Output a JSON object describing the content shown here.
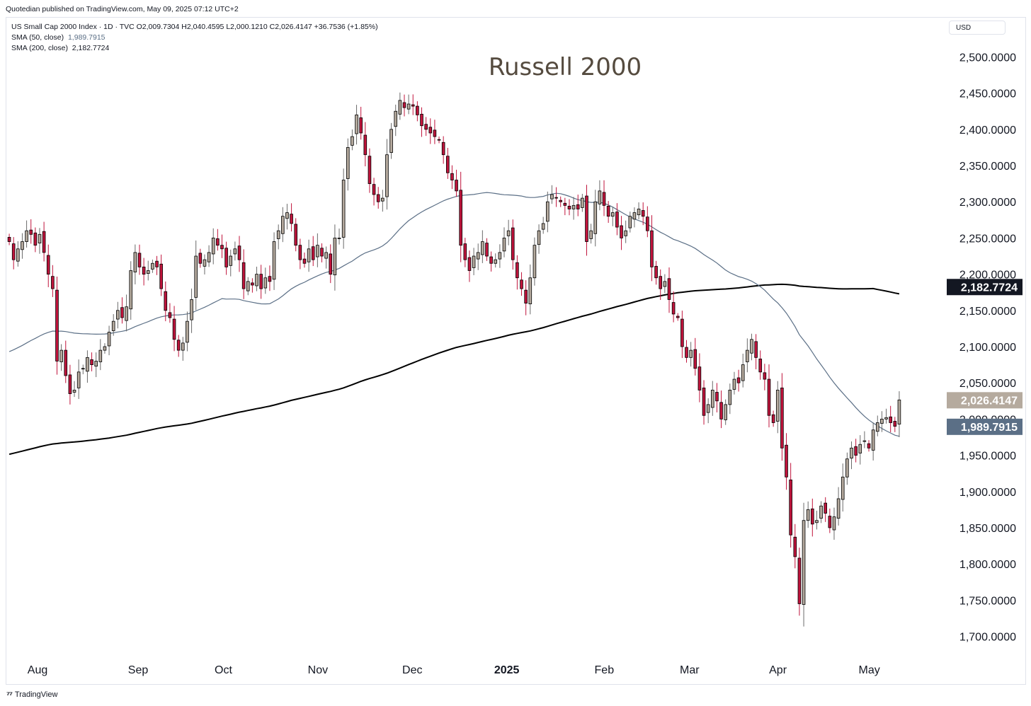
{
  "published_line": "Quotedian published on TradingView.com, May 09, 2025 07:12 UTC+2",
  "legend": {
    "symbol_line": "US Small Cap 2000 Index · 1D · TVC  O2,009.7304  H2,040.4595  L2,000.1210  C2,026.4147  +36.7536 (+1.85%)",
    "sma50_label": "SMA (50, close)",
    "sma50_value": "1,989.7915",
    "sma200_label": "SMA (200, close)",
    "sma200_value": "2,182.7724"
  },
  "currency": "USD",
  "footer": {
    "brand": "TradingView",
    "logo_icon": "tradingview-logo-icon"
  },
  "colors": {
    "up_candle_fill": "#b5aa9e",
    "down_candle_fill": "#c0143c",
    "sma50_line": "#5b6f86",
    "sma200_line": "#000000",
    "title_text": "#554b3f",
    "last_price_badge": "#b5aa9e",
    "sma50_badge": "#5b6f86",
    "sma200_badge": "#131722"
  },
  "chart_data": {
    "type": "candlestick",
    "title": "Russell 2000",
    "ylim": [
      1680,
      2520
    ],
    "y_ticks": [
      2500,
      2450,
      2400,
      2350,
      2300,
      2250,
      2200,
      2150,
      2100,
      2050,
      2000,
      1950,
      1900,
      1850,
      1800,
      1750,
      1700
    ],
    "y_tick_labels": [
      "2,500.0000",
      "2,450.0000",
      "2,400.0000",
      "2,350.0000",
      "2,300.0000",
      "2,250.0000",
      "2,200.0000",
      "2,150.0000",
      "2,100.0000",
      "2,050.0000",
      "2,000.0000",
      "1,950.0000",
      "1,900.0000",
      "1,850.0000",
      "1,800.0000",
      "1,750.0000",
      "1,700.0000"
    ],
    "x_range": [
      "2024-07-22",
      "2025-05-12"
    ],
    "x_ticks": [
      {
        "date": "2024-08-01",
        "label": "Aug"
      },
      {
        "date": "2024-09-03",
        "label": "Sep"
      },
      {
        "date": "2024-10-01",
        "label": "Oct"
      },
      {
        "date": "2024-11-01",
        "label": "Nov"
      },
      {
        "date": "2024-12-02",
        "label": "Dec"
      },
      {
        "date": "2025-01-02",
        "label": "2025"
      },
      {
        "date": "2025-02-03",
        "label": "Feb"
      },
      {
        "date": "2025-03-03",
        "label": "Mar"
      },
      {
        "date": "2025-04-01",
        "label": "Apr"
      },
      {
        "date": "2025-05-01",
        "label": "May"
      }
    ],
    "price_badges": [
      {
        "label": "2,182.7724",
        "value": 2182.7724,
        "series": "SMA (200, close)"
      },
      {
        "label": "2,026.4147",
        "value": 2026.4147,
        "series": "Last close"
      },
      {
        "label": "1,989.7915",
        "value": 1989.7915,
        "series": "SMA (50, close)"
      }
    ],
    "candles_close": [
      2245,
      2220,
      2235,
      2245,
      2260,
      2255,
      2240,
      2255,
      2230,
      2200,
      2180,
      2080,
      2095,
      2060,
      2035,
      2040,
      2065,
      2070,
      2085,
      2075,
      2080,
      2095,
      2100,
      2120,
      2135,
      2150,
      2140,
      2155,
      2205,
      2230,
      2210,
      2200,
      2205,
      2215,
      2210,
      2180,
      2150,
      2140,
      2110,
      2095,
      2105,
      2135,
      2165,
      2225,
      2215,
      2220,
      2230,
      2250,
      2240,
      2235,
      2210,
      2225,
      2235,
      2220,
      2180,
      2190,
      2185,
      2200,
      2180,
      2195,
      2190,
      2245,
      2260,
      2280,
      2285,
      2270,
      2240,
      2220,
      2215,
      2235,
      2220,
      2240,
      2225,
      2230,
      2200,
      2250,
      2250,
      2330,
      2375,
      2390,
      2420,
      2395,
      2365,
      2325,
      2310,
      2300,
      2305,
      2365,
      2400,
      2425,
      2440,
      2430,
      2435,
      2432,
      2420,
      2405,
      2400,
      2395,
      2390,
      2385,
      2365,
      2340,
      2330,
      2315,
      2240,
      2220,
      2205,
      2225,
      2230,
      2245,
      2225,
      2215,
      2220,
      2230,
      2250,
      2260,
      2220,
      2195,
      2180,
      2160,
      2195,
      2240,
      2260,
      2270,
      2300,
      2310,
      2305,
      2300,
      2295,
      2290,
      2295,
      2290,
      2305,
      2245,
      2260,
      2300,
      2315,
      2295,
      2280,
      2285,
      2265,
      2250,
      2260,
      2280,
      2285,
      2290,
      2280,
      2260,
      2210,
      2195,
      2180,
      2190,
      2165,
      2145,
      2140,
      2100,
      2085,
      2095,
      2070,
      2040,
      2005,
      2020,
      2040,
      2025,
      2000,
      2020,
      2040,
      2055,
      2050,
      2075,
      2095,
      2110,
      2085,
      2065,
      2055,
      2005,
      1995,
      2040,
      1960,
      1920,
      1840,
      1810,
      1745,
      1860,
      1875,
      1855,
      1860,
      1880,
      1870,
      1850,
      1865,
      1890,
      1920,
      1945,
      1960,
      1950,
      1965,
      1970,
      1960,
      1985,
      1995,
      2000,
      2002,
      1995,
      1990,
      2026.41
    ]
  }
}
